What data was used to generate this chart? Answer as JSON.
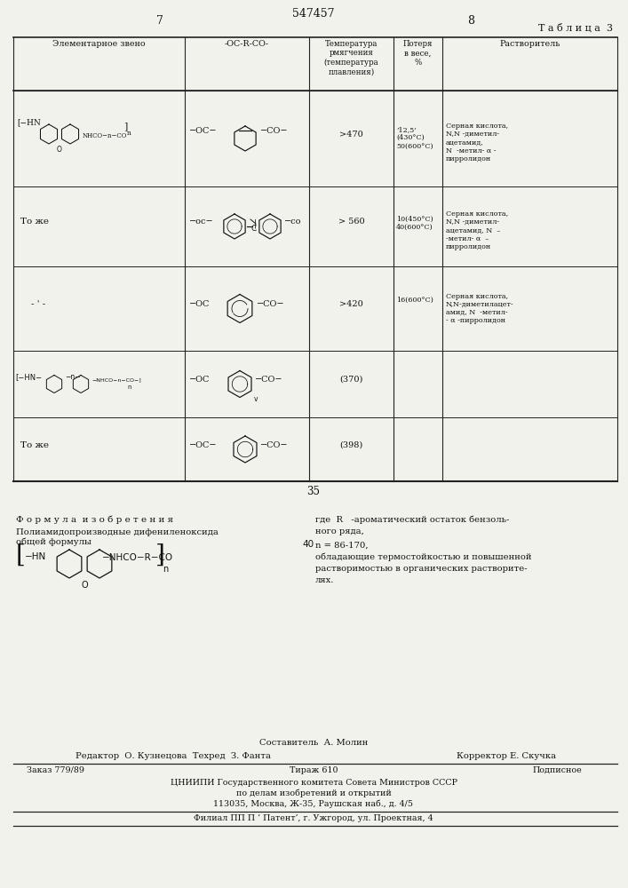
{
  "page_number_left": "7",
  "page_number_center": "547457",
  "page_number_right": "8",
  "table_title": "Т а б л и ц а  3",
  "col_headers": [
    "Элементарное звено",
    "-ОС-R-СО-",
    "Температура\nрмягчения\n(температура\nплавления)",
    "Потеря\nв весе,\n%",
    "Растворитель"
  ],
  "row1_col3": ">470",
  "row1_col4": "’12,5’\n(430°C)\n50(600°C)",
  "row1_col5": "Серная кислота,\nN,N -диметил-\nацетамид,\nN  -метил- α -\nпирролидон",
  "row2_col1": "То же",
  "row2_col3": ">560",
  "row2_col4": "10(450°C)\n40(600°C)",
  "row2_col5": "Серная кислота,\nN,N -диметил-\nацетамид, N  –\n-метил- α  –\nпирролидон",
  "row3_col1": "- ‘ -",
  "row3_col3": ">420",
  "row3_col4": "16(600°C)",
  "row3_col5": "Серная кислота,\nN,N-диметилацет-\nамид, N  -метил-\n- α -пирролидон",
  "row4_col3": "(370)",
  "row5_col1": "То же",
  "row5_col3": "(398)",
  "bottom_number": "35",
  "formula_title": "Ф о р м у л а  и з о б р е т е н и я",
  "formula_subtitle": "Полиамидопроизводные дифениленоксида\nобщей формулы",
  "formula_right1": "где  R   -арома тический остаток бензоль-\nного ряда,",
  "formula_marker": "40",
  "formula_right2": "n = 86-170,\nобладающие термостойкостью и повышенной\nрастворимостью в органических растворите-\nлях.",
  "footer_composer": "Составитель  А. Молин",
  "footer_editor": "Редактор  О. Кузнецова  Техред  З. Фанта",
  "footer_corrector": "Корректор Е. Скучка",
  "footer_order": "Заказ 779/89",
  "footer_edition": "Тираж 610",
  "footer_subscription": "Подписное",
  "footer_org1": "ЦНИИПИ Государственного комитета Совета Министров СССР",
  "footer_org2": "по делам изобретений и открытий",
  "footer_org3": "113035, Москва, Ж-35, Раушская наб., д. 4/5",
  "footer_branch": "Филиал ПП П ’ Патент’, г. Ужгород, ул. Проектная, 4",
  "bg_color": "#f2f2ed",
  "text_color": "#111111",
  "line_color": "#222222"
}
